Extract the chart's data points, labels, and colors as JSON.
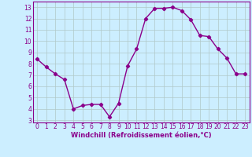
{
  "x": [
    0,
    1,
    2,
    3,
    4,
    5,
    6,
    7,
    8,
    9,
    10,
    11,
    12,
    13,
    14,
    15,
    16,
    17,
    18,
    19,
    20,
    21,
    22,
    23
  ],
  "y": [
    8.4,
    7.7,
    7.1,
    6.6,
    4.0,
    4.3,
    4.4,
    4.4,
    3.3,
    4.5,
    7.8,
    9.3,
    12.0,
    12.9,
    12.9,
    13.0,
    12.7,
    11.9,
    10.5,
    10.4,
    9.3,
    8.5,
    7.1,
    7.1
  ],
  "line_color": "#8b008b",
  "marker": "D",
  "markersize": 2.2,
  "linewidth": 1.0,
  "background_color": "#cceeff",
  "grid_color": "#b0c8c8",
  "xlabel": "Windchill (Refroidissement éolien,°C)",
  "xlabel_color": "#8b008b",
  "xlabel_fontsize": 6.0,
  "tick_color": "#8b008b",
  "tick_fontsize": 5.5,
  "ylim": [
    2.8,
    13.5
  ],
  "yticks": [
    3,
    4,
    5,
    6,
    7,
    8,
    9,
    10,
    11,
    12,
    13
  ],
  "xlim": [
    -0.5,
    23.5
  ],
  "xticks": [
    0,
    1,
    2,
    3,
    4,
    5,
    6,
    7,
    8,
    9,
    10,
    11,
    12,
    13,
    14,
    15,
    16,
    17,
    18,
    19,
    20,
    21,
    22,
    23
  ],
  "spine_color": "#8b008b"
}
